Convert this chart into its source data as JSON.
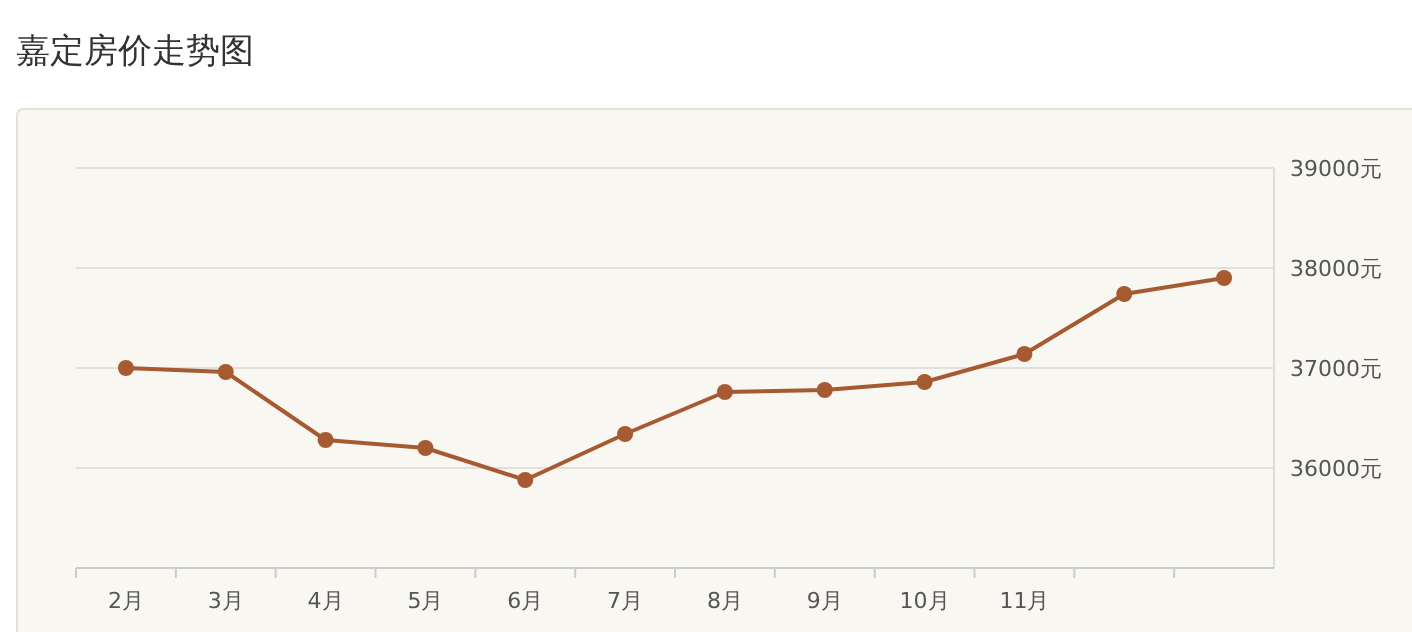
{
  "chart_data": {
    "type": "line",
    "title": "嘉定房价走势图",
    "categories": [
      "2月",
      "3月",
      "4月",
      "5月",
      "6月",
      "7月",
      "8月",
      "9月",
      "10月",
      "11月",
      null,
      null
    ],
    "series": [
      {
        "color": "#a65a32",
        "values": [
          37000,
          36960,
          36280,
          36200,
          35880,
          36340,
          36760,
          36780,
          36860,
          37140,
          37740,
          37900
        ]
      }
    ],
    "ylim": [
      35000,
      39000
    ],
    "yticks": [
      {
        "value": 36000,
        "label": "36000元"
      },
      {
        "value": 37000,
        "label": "37000元"
      },
      {
        "value": 38000,
        "label": "38000元"
      },
      {
        "value": 39000,
        "label": "39000元"
      }
    ],
    "grid": "y",
    "marker": "circle",
    "line_style": "solid"
  }
}
